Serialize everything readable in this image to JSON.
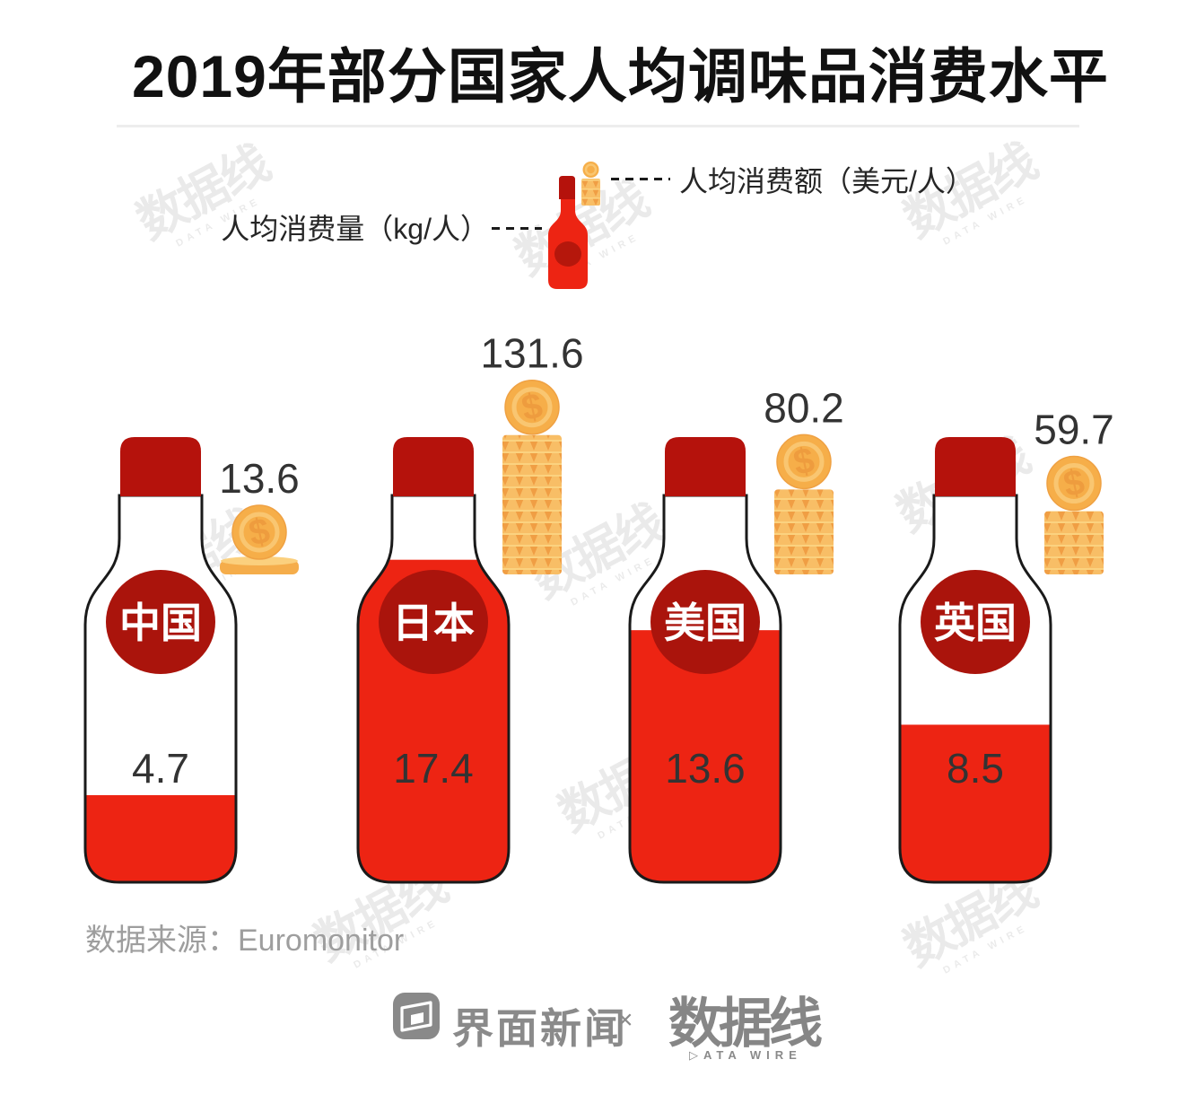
{
  "title": "2019年部分国家人均调味品消费水平",
  "legend": {
    "quantity_label": "人均消费量（kg/人）",
    "amount_label": "人均消费额（美元/人）"
  },
  "chart_data": {
    "type": "pictogram-bar",
    "title": "2019年部分国家人均调味品消费水平",
    "categories": [
      "中国",
      "日本",
      "美国",
      "英国"
    ],
    "keys": [
      "china",
      "japan",
      "usa",
      "uk"
    ],
    "series": [
      {
        "name": "人均消费量",
        "unit": "kg/人",
        "values": [
          4.7,
          17.4,
          13.6,
          8.5
        ],
        "glyph": "bottle-fill-level"
      },
      {
        "name": "人均消费额",
        "unit": "美元/人",
        "values": [
          13.6,
          131.6,
          80.2,
          59.7
        ],
        "glyph": "coin-stack-height"
      }
    ],
    "source": "Euromonitor"
  },
  "source": {
    "text": "数据来源：Euromonitor"
  },
  "footer": {
    "brand1": "界面新闻",
    "separator": "×",
    "brand2": "数据线",
    "brand2_sub": "▷ATA WIRE"
  },
  "watermark": {
    "text": "数据线",
    "subtext": "DATA WIRE"
  },
  "colors": {
    "bottle_red": "#ed2413",
    "cap_red": "#b5120c",
    "badge_red": "#aa140c",
    "outline": "#1a1a1a",
    "coin_gold": "#f6ae49",
    "coin_edge": "#efa143",
    "coin_ring": "#f9c671",
    "coin_dollar": "#ee9c3e",
    "stack_light": "#f8be66",
    "stack_dark": "#f09e44",
    "stack_line": "#fbd27f",
    "disc_body": "#f5ad4b",
    "disc_top": "#fbd07e",
    "title_text": "#111111",
    "value_text": "#333333",
    "source_text": "#9e9e9e",
    "footer_gray": "#8a8a8a",
    "divider": "#ededed"
  }
}
